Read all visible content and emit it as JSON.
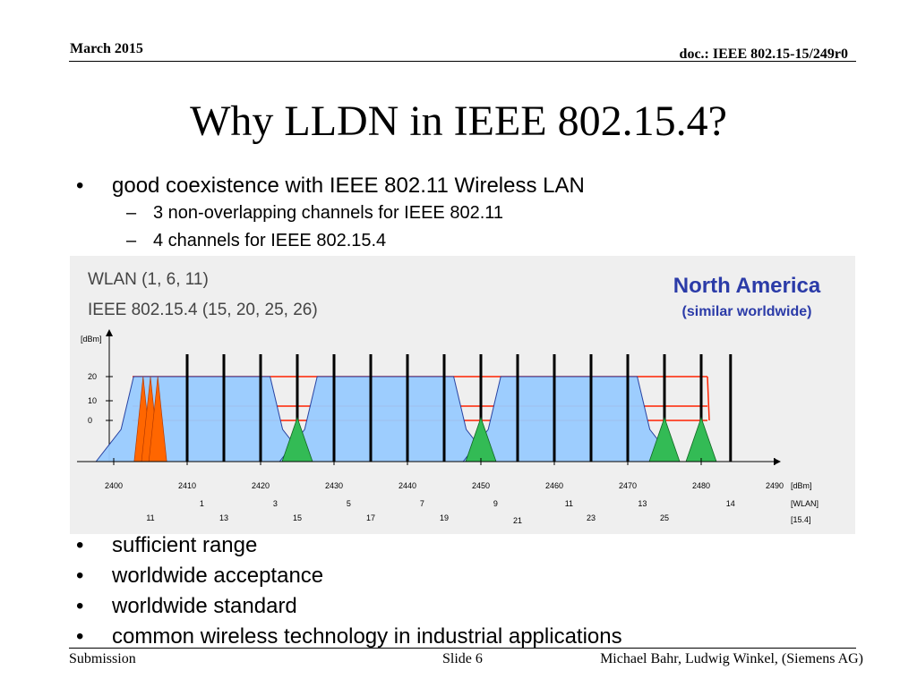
{
  "header": {
    "date": "March 2015",
    "doc_id": "doc.: IEEE 802.15-15/249r0"
  },
  "title": "Why LLDN in IEEE 802.15.4?",
  "bullets_top": [
    {
      "text": "good coexistence with IEEE 802.11 Wireless LAN",
      "sub": [
        "3 non-overlapping channels for IEEE 802.11",
        "4 channels for IEEE 802.15.4"
      ]
    }
  ],
  "bullets_bottom": [
    "sufficient range",
    "worldwide acceptance",
    "worldwide standard",
    "common wireless technology in industrial applications"
  ],
  "bullet_char": "•",
  "dash_char": "–",
  "chart": {
    "legend_wlan": "WLAN (1, 6, 11)",
    "legend_zigbee": "IEEE 802.15.4 (15, 20, 25, 26)",
    "region_title": "North America",
    "region_subtitle": "(similar worldwide)",
    "y_unit": "[dBm]",
    "y_ticks": [
      "20",
      "10",
      "0"
    ],
    "freq_ticks": [
      "2400",
      "2410",
      "2420",
      "2430",
      "2440",
      "2450",
      "2460",
      "2470",
      "2480",
      "2490"
    ],
    "freq_unit": "[dBm]",
    "wlan_channels": [
      "1",
      "3",
      "5",
      "7",
      "9",
      "11",
      "13",
      "14"
    ],
    "wlan_unit": "[WLAN]",
    "zigbee_channels": [
      "11",
      "13",
      "15",
      "17",
      "19",
      "21",
      "23",
      "25"
    ],
    "zigbee_unit": "[15.4]",
    "colors": {
      "wlan_fill": "#99ccff",
      "wlan_edge": "#1f3a9e",
      "zigbee_fill": "#33bb55",
      "zigbee_other": "#ff6600",
      "mask_line": "#ff2200",
      "region_text": "#2b3ba8"
    }
  },
  "chart_data": {
    "type": "area",
    "title": "",
    "xlabel": "[dBm]",
    "ylabel": "[dBm]",
    "xlim": [
      2400,
      2490
    ],
    "ylim": [
      -5,
      25
    ],
    "wlan_channels_shown": [
      1,
      6,
      11
    ],
    "zigbee_channels_shown": [
      15,
      20,
      25,
      26
    ],
    "zigbee_center_freqs": [
      2425,
      2450,
      2475,
      2480
    ]
  },
  "footer": {
    "left": "Submission",
    "center": "Slide 6",
    "right": "Michael Bahr, Ludwig Winkel, (Siemens AG)"
  }
}
